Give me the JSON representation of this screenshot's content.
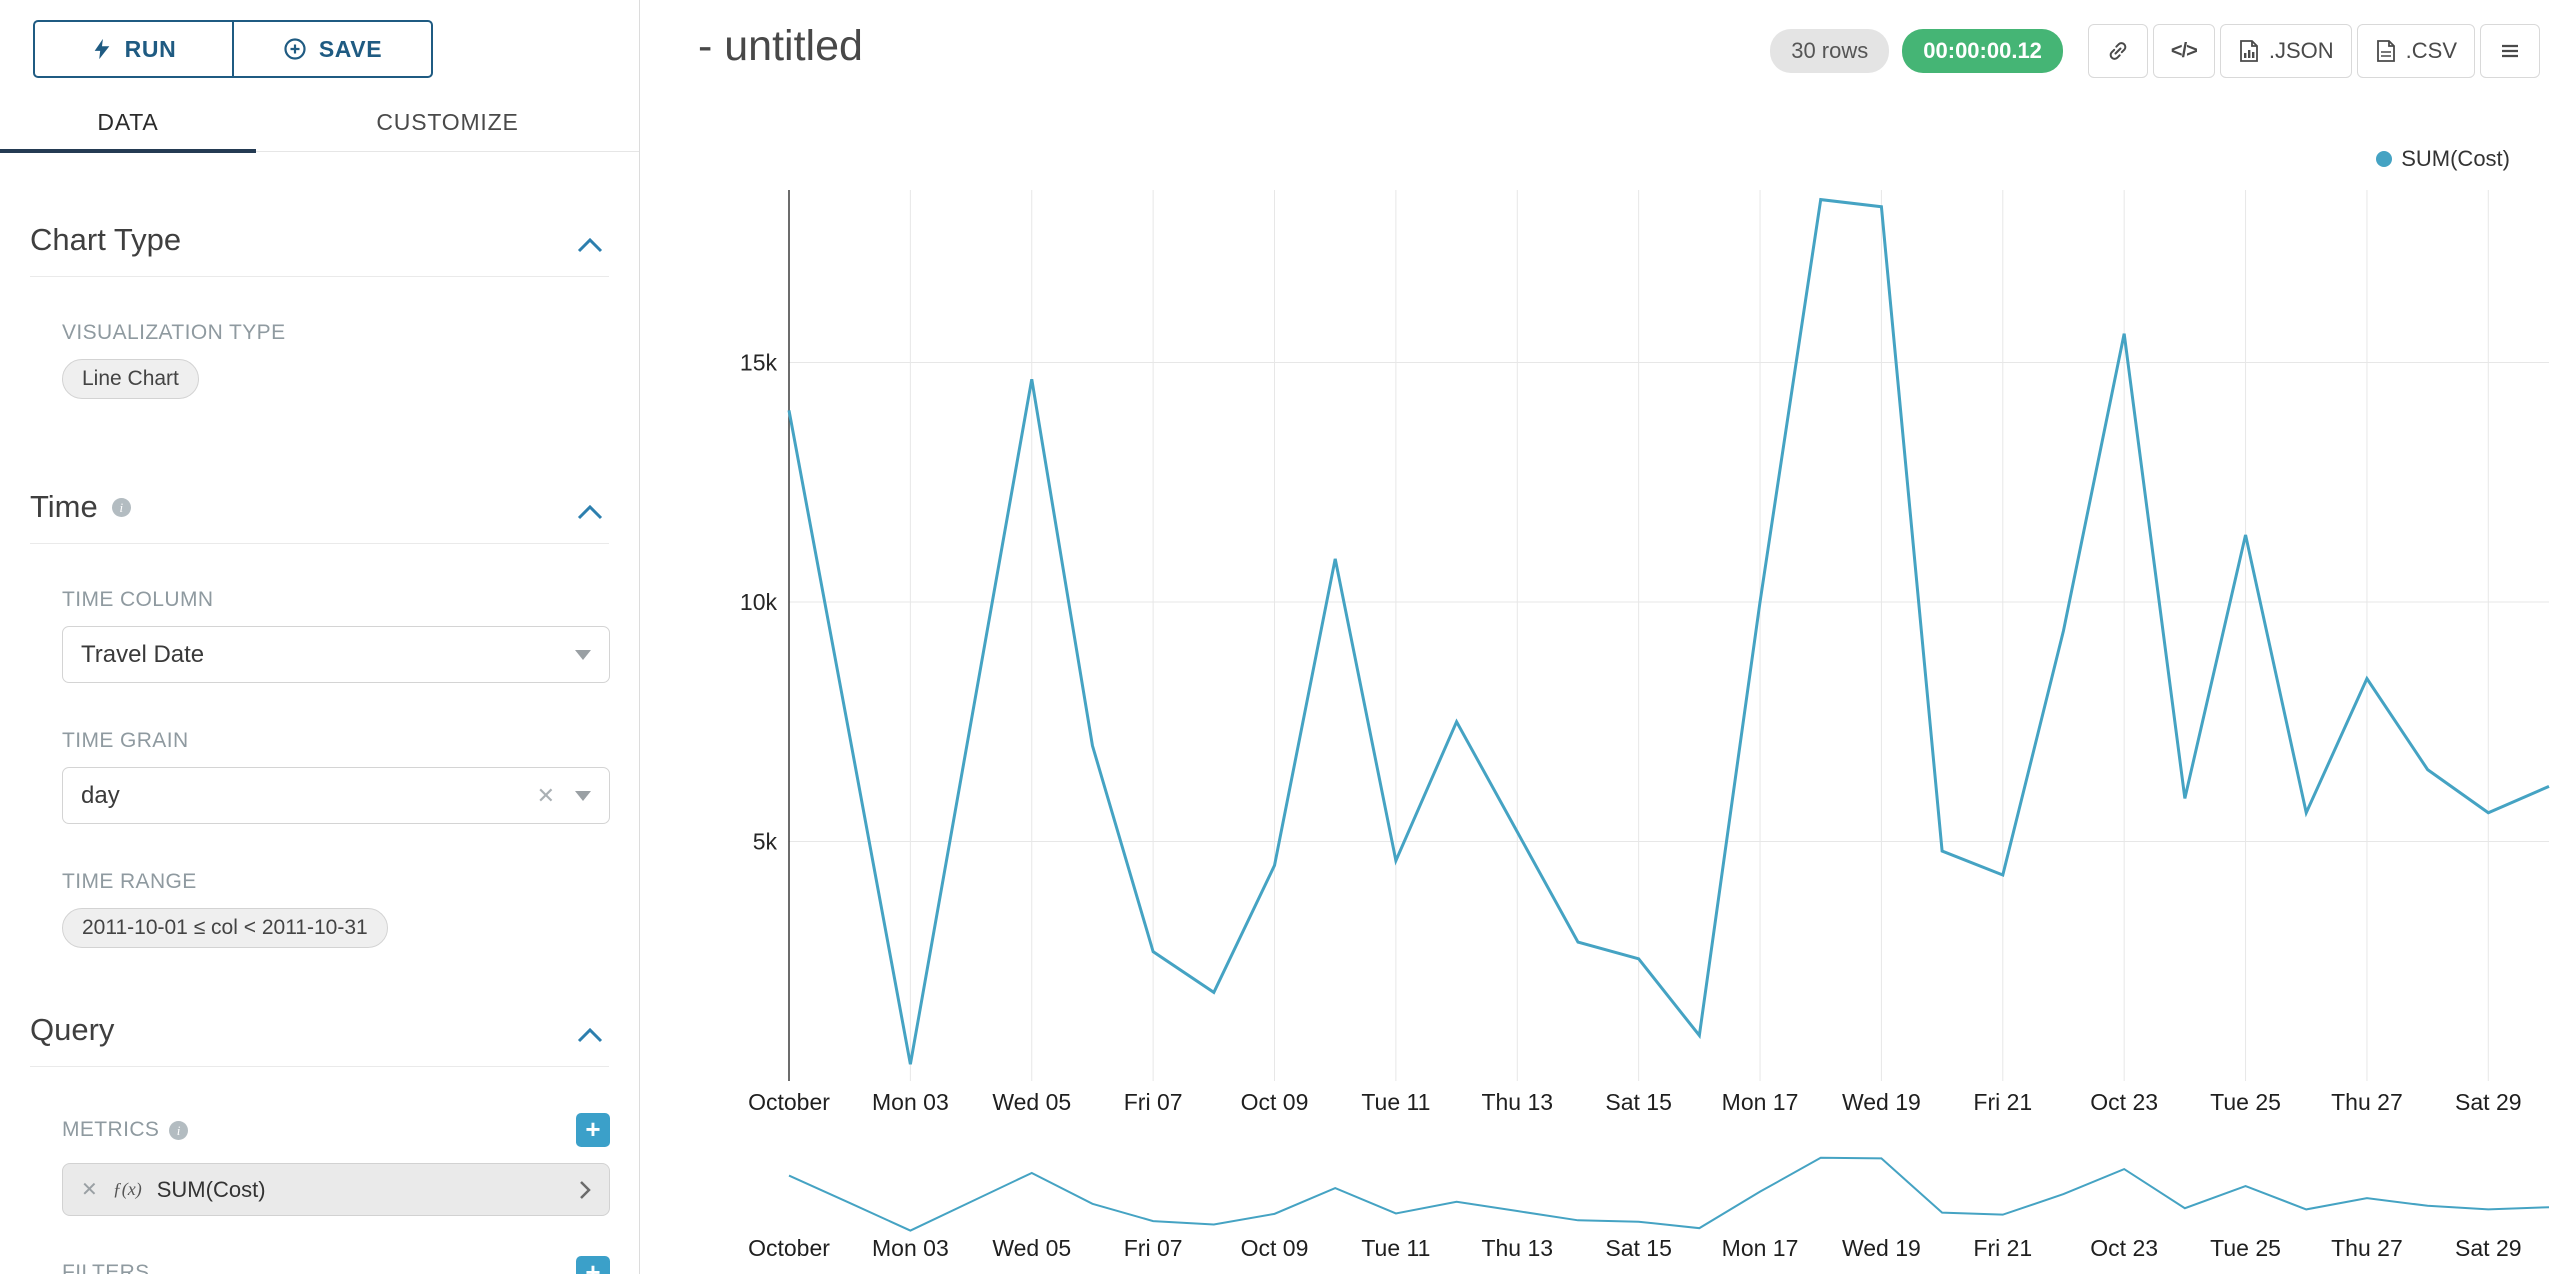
{
  "toolbar": {
    "run": "RUN",
    "save": "SAVE"
  },
  "tabs": [
    {
      "label": "DATA"
    },
    {
      "label": "CUSTOMIZE"
    }
  ],
  "panel": {
    "chart_type": {
      "heading": "Chart Type",
      "viz_label": "VISUALIZATION TYPE",
      "viz_value": "Line Chart"
    },
    "time": {
      "heading": "Time",
      "column_label": "TIME COLUMN",
      "column_value": "Travel Date",
      "grain_label": "TIME GRAIN",
      "grain_value": "day",
      "range_label": "TIME RANGE",
      "range_value": "2011-10-01 ≤ col < 2011-10-31"
    },
    "query": {
      "heading": "Query",
      "metrics_label": "METRICS",
      "metric_fx": "ƒ(x)",
      "metric_value": "SUM(Cost)",
      "filters_label": "FILTERS",
      "add_symbol": "+"
    }
  },
  "header": {
    "title": "- untitled",
    "rows_badge": "30 rows",
    "timer": "00:00:00.12",
    "export": {
      "code_label": "</>",
      "json": ".JSON",
      "csv": ".CSV"
    },
    "icon_names": [
      "link-icon",
      "code-icon",
      "json-file-icon",
      "csv-file-icon",
      "menu-icon"
    ]
  },
  "legend": [
    {
      "label": "SUM(Cost)",
      "color": "#45a3c3"
    }
  ],
  "chart_data": {
    "type": "line",
    "title": "",
    "n_points": 30,
    "x_tick_labels": [
      "October",
      "Mon 03",
      "Wed 05",
      "Fri 07",
      "Oct 09",
      "Tue 11",
      "Thu 13",
      "Sat 15",
      "Mon 17",
      "Wed 19",
      "Fri 21",
      "Oct 23",
      "Tue 25",
      "Thu 27",
      "Sat 29"
    ],
    "x_tick_every": 2,
    "y_ticks": [
      {
        "label": "5k",
        "value": 5000
      },
      {
        "label": "10k",
        "value": 10000
      },
      {
        "label": "15k",
        "value": 15000
      }
    ],
    "ylim": [
      0,
      18600
    ],
    "grid": true,
    "legend_position": "top-right",
    "has_context_brush": true,
    "series": [
      {
        "name": "SUM(Cost)",
        "color": "#45a3c3",
        "values": [
          14000,
          7200,
          350,
          7500,
          14650,
          7000,
          2700,
          1850,
          4500,
          10900,
          4600,
          7500,
          5200,
          2900,
          2550,
          950,
          10000,
          18400,
          18250,
          4800,
          4300,
          9400,
          15600,
          5900,
          11400,
          5600,
          8400,
          6500,
          5600,
          6150
        ]
      }
    ]
  }
}
